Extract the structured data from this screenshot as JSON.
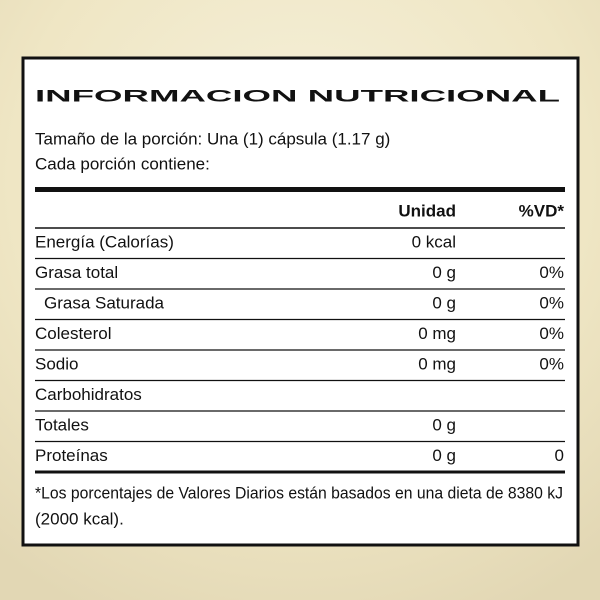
{
  "header": {
    "title": "INFORMACION NUTRICIONAL",
    "serving": "Tamaño de la porción: Una (1) cápsula (1.17 g)",
    "per_serving": "Cada porción contiene:"
  },
  "table": {
    "columns": [
      "Unidad",
      "%VD*"
    ],
    "rows": [
      {
        "name": "Energía (Calorías)",
        "unit": "0 kcal"
      },
      {
        "name": "Grasa total",
        "unit": "0 g",
        "vd": "0%"
      },
      {
        "name": "Grasa Saturada",
        "unit": "0 g",
        "vd": "0%",
        "indent": true
      },
      {
        "name": "Colesterol",
        "unit": "0 mg",
        "vd": "0%"
      },
      {
        "name": "Sodio",
        "unit": "0 mg",
        "vd": "0%"
      },
      {
        "name": "Carbohidratos"
      },
      {
        "name": "Totales",
        "unit": "0 g"
      },
      {
        "name": "Proteínas",
        "unit": "0 g",
        "vd": "0"
      }
    ]
  },
  "footer": {
    "lines": [
      "*Los porcentajes de Valores Diarios están basados en una dieta de  8380 kJ",
      "(2000 kcal)."
    ]
  }
}
